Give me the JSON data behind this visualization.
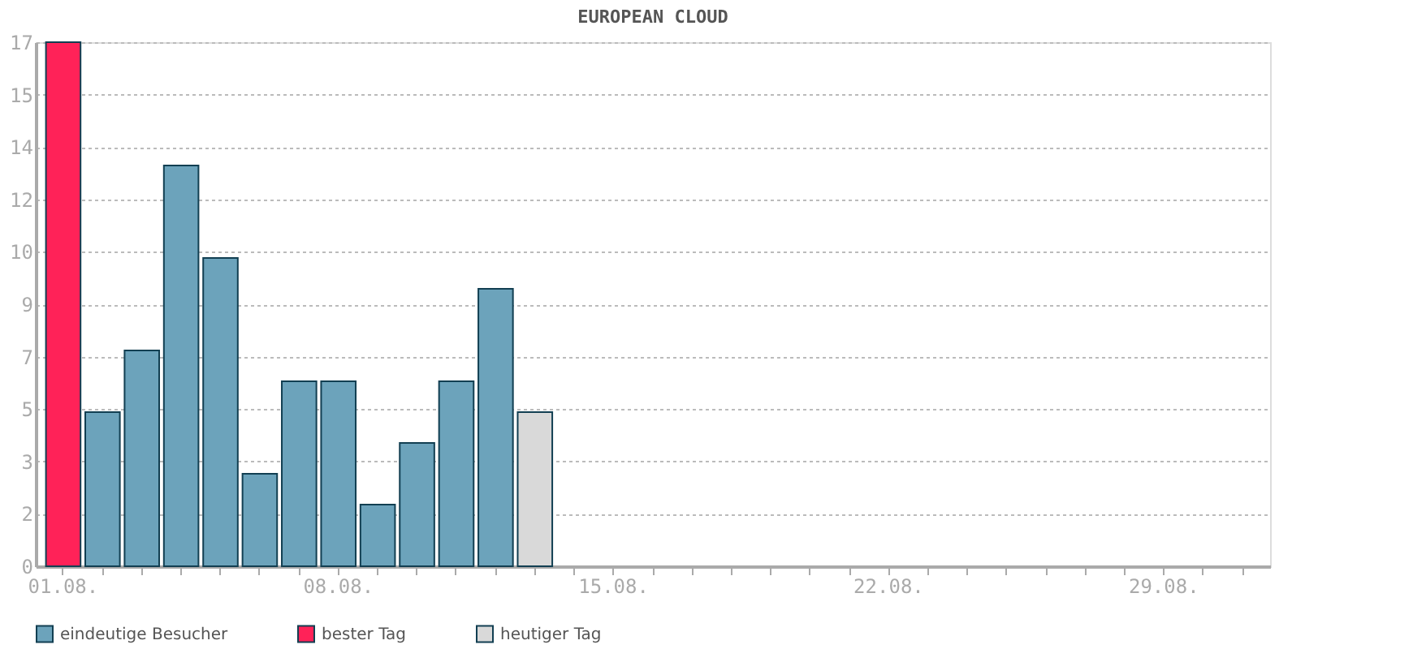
{
  "chart_data": {
    "type": "bar",
    "title": "EUROPEAN CLOUD",
    "categories": [
      "01.08.",
      null,
      null,
      null,
      null,
      null,
      null,
      "08.08.",
      null,
      null,
      null,
      null,
      null,
      null,
      "15.08.",
      null,
      null,
      null,
      null,
      null,
      null,
      "22.08.",
      null,
      null,
      null,
      null,
      null,
      null,
      "29.08.",
      null,
      null
    ],
    "series": [
      {
        "name": "eindeutige Besucher",
        "color": "#6ca3bb",
        "values": [
          null,
          5,
          7,
          13,
          10,
          3,
          6,
          6,
          2,
          4,
          6,
          9,
          null,
          null,
          null,
          null,
          null,
          null,
          null,
          null,
          null,
          null,
          null,
          null,
          null,
          null,
          null,
          null,
          null,
          null,
          null
        ]
      },
      {
        "name": "bester Tag",
        "color": "#ff2258",
        "values": [
          17,
          null,
          null,
          null,
          null,
          null,
          null,
          null,
          null,
          null,
          null,
          null,
          null,
          null,
          null,
          null,
          null,
          null,
          null,
          null,
          null,
          null,
          null,
          null,
          null,
          null,
          null,
          null,
          null,
          null,
          null
        ]
      },
      {
        "name": "heutiger Tag",
        "color": "#d9d9d9",
        "values": [
          null,
          null,
          null,
          null,
          null,
          null,
          null,
          null,
          null,
          null,
          null,
          null,
          5,
          null,
          null,
          null,
          null,
          null,
          null,
          null,
          null,
          null,
          null,
          null,
          null,
          null,
          null,
          null,
          null,
          null,
          null
        ]
      }
    ],
    "ylim": [
      0,
      17
    ],
    "yticks": [
      0,
      {
        "value": 1.7,
        "label": "2"
      },
      {
        "value": 3.4,
        "label": "3"
      },
      {
        "value": 5.1,
        "label": "5"
      },
      {
        "value": 6.8,
        "label": "7"
      },
      {
        "value": 8.5,
        "label": "9"
      },
      {
        "value": 10.2,
        "label": "10"
      },
      {
        "value": 11.9,
        "label": "12"
      },
      {
        "value": 13.6,
        "label": "14"
      },
      {
        "value": 15.3,
        "label": "15"
      },
      17
    ],
    "grid": "y",
    "legend": "bottom"
  }
}
